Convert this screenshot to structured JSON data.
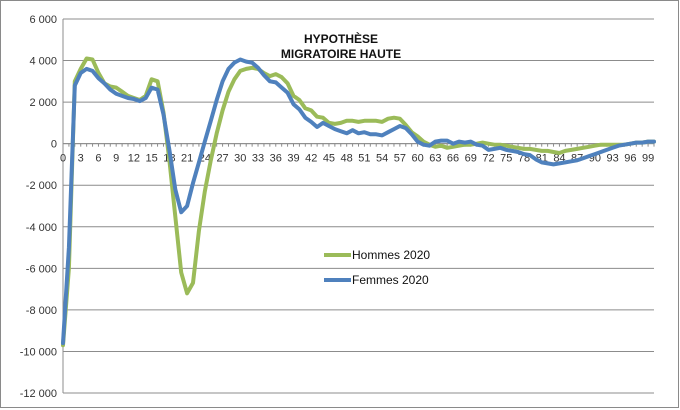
{
  "chart_data": {
    "type": "line",
    "title_lines": [
      "HYPOTHÈSE",
      "MIGRATOIRE HAUTE"
    ],
    "xlabel": "",
    "ylabel": "",
    "xlim": [
      0,
      100
    ],
    "ylim": [
      -12000,
      6000
    ],
    "y_ticks": [
      6000,
      4000,
      2000,
      0,
      -2000,
      -4000,
      -6000,
      -8000,
      -10000,
      -12000
    ],
    "y_tick_labels": [
      "6 000",
      "4 000",
      "2 000",
      "0",
      "-2 000",
      "-4 000",
      "-6 000",
      "-8 000",
      "-10 000",
      "-12 000"
    ],
    "x_ticks": [
      0,
      3,
      6,
      9,
      12,
      15,
      18,
      21,
      24,
      27,
      30,
      33,
      36,
      39,
      42,
      45,
      48,
      51,
      54,
      57,
      60,
      63,
      66,
      69,
      72,
      75,
      78,
      81,
      84,
      87,
      90,
      93,
      96,
      99
    ],
    "grid": "horizontal",
    "legend_position": "center",
    "series": [
      {
        "name": "Hommes 2020",
        "color": "#9bbb59",
        "points": [
          [
            0,
            -9700
          ],
          [
            1,
            -6000
          ],
          [
            2,
            3000
          ],
          [
            3,
            3600
          ],
          [
            4,
            4100
          ],
          [
            5,
            4050
          ],
          [
            6,
            3400
          ],
          [
            7,
            2900
          ],
          [
            8,
            2750
          ],
          [
            9,
            2700
          ],
          [
            10,
            2500
          ],
          [
            11,
            2300
          ],
          [
            12,
            2200
          ],
          [
            13,
            2100
          ],
          [
            14,
            2300
          ],
          [
            15,
            3100
          ],
          [
            16,
            3000
          ],
          [
            17,
            1500
          ],
          [
            18,
            -800
          ],
          [
            19,
            -3500
          ],
          [
            20,
            -6200
          ],
          [
            21,
            -7200
          ],
          [
            22,
            -6700
          ],
          [
            23,
            -4200
          ],
          [
            24,
            -2300
          ],
          [
            25,
            -800
          ],
          [
            26,
            500
          ],
          [
            27,
            1600
          ],
          [
            28,
            2500
          ],
          [
            29,
            3100
          ],
          [
            30,
            3500
          ],
          [
            31,
            3600
          ],
          [
            32,
            3650
          ],
          [
            33,
            3600
          ],
          [
            34,
            3400
          ],
          [
            35,
            3250
          ],
          [
            36,
            3350
          ],
          [
            37,
            3200
          ],
          [
            38,
            2900
          ],
          [
            39,
            2300
          ],
          [
            40,
            2100
          ],
          [
            41,
            1700
          ],
          [
            42,
            1600
          ],
          [
            43,
            1300
          ],
          [
            44,
            1250
          ],
          [
            45,
            1000
          ],
          [
            46,
            950
          ],
          [
            47,
            1000
          ],
          [
            48,
            1100
          ],
          [
            49,
            1100
          ],
          [
            50,
            1050
          ],
          [
            51,
            1100
          ],
          [
            52,
            1100
          ],
          [
            53,
            1100
          ],
          [
            54,
            1050
          ],
          [
            55,
            1200
          ],
          [
            56,
            1250
          ],
          [
            57,
            1200
          ],
          [
            58,
            900
          ],
          [
            59,
            550
          ],
          [
            60,
            350
          ],
          [
            61,
            100
          ],
          [
            62,
            -50
          ],
          [
            63,
            -150
          ],
          [
            64,
            -100
          ],
          [
            65,
            -200
          ],
          [
            66,
            -150
          ],
          [
            67,
            -100
          ],
          [
            68,
            -50
          ],
          [
            69,
            -50
          ],
          [
            70,
            0
          ],
          [
            71,
            50
          ],
          [
            72,
            0
          ],
          [
            73,
            -50
          ],
          [
            74,
            -50
          ],
          [
            75,
            -100
          ],
          [
            76,
            -150
          ],
          [
            77,
            -200
          ],
          [
            78,
            -250
          ],
          [
            79,
            -250
          ],
          [
            80,
            -300
          ],
          [
            81,
            -350
          ],
          [
            82,
            -350
          ],
          [
            83,
            -400
          ],
          [
            84,
            -450
          ],
          [
            85,
            -350
          ],
          [
            86,
            -300
          ],
          [
            87,
            -250
          ],
          [
            88,
            -200
          ],
          [
            89,
            -150
          ],
          [
            90,
            -100
          ],
          [
            91,
            -50
          ],
          [
            92,
            -50
          ],
          [
            93,
            -50
          ],
          [
            94,
            -50
          ],
          [
            95,
            -50
          ],
          [
            96,
            0
          ],
          [
            97,
            50
          ],
          [
            98,
            50
          ],
          [
            99,
            100
          ],
          [
            100,
            100
          ]
        ]
      },
      {
        "name": "Femmes 2020",
        "color": "#4f81bd",
        "points": [
          [
            0,
            -9600
          ],
          [
            1,
            -5000
          ],
          [
            2,
            2800
          ],
          [
            3,
            3400
          ],
          [
            4,
            3600
          ],
          [
            5,
            3500
          ],
          [
            6,
            3150
          ],
          [
            7,
            2900
          ],
          [
            8,
            2600
          ],
          [
            9,
            2400
          ],
          [
            10,
            2300
          ],
          [
            11,
            2200
          ],
          [
            12,
            2150
          ],
          [
            13,
            2050
          ],
          [
            14,
            2200
          ],
          [
            15,
            2700
          ],
          [
            16,
            2600
          ],
          [
            17,
            1400
          ],
          [
            18,
            -300
          ],
          [
            19,
            -2200
          ],
          [
            20,
            -3300
          ],
          [
            21,
            -3000
          ],
          [
            22,
            -1900
          ],
          [
            23,
            -900
          ],
          [
            24,
            100
          ],
          [
            25,
            1100
          ],
          [
            26,
            2100
          ],
          [
            27,
            3000
          ],
          [
            28,
            3600
          ],
          [
            29,
            3900
          ],
          [
            30,
            4050
          ],
          [
            31,
            3950
          ],
          [
            32,
            3900
          ],
          [
            33,
            3650
          ],
          [
            34,
            3300
          ],
          [
            35,
            3000
          ],
          [
            36,
            2950
          ],
          [
            37,
            2700
          ],
          [
            38,
            2450
          ],
          [
            39,
            1900
          ],
          [
            40,
            1650
          ],
          [
            41,
            1250
          ],
          [
            42,
            1050
          ],
          [
            43,
            800
          ],
          [
            44,
            1000
          ],
          [
            45,
            850
          ],
          [
            46,
            700
          ],
          [
            47,
            600
          ],
          [
            48,
            500
          ],
          [
            49,
            650
          ],
          [
            50,
            500
          ],
          [
            51,
            550
          ],
          [
            52,
            450
          ],
          [
            53,
            450
          ],
          [
            54,
            400
          ],
          [
            55,
            550
          ],
          [
            56,
            700
          ],
          [
            57,
            850
          ],
          [
            58,
            750
          ],
          [
            59,
            450
          ],
          [
            60,
            100
          ],
          [
            61,
            -50
          ],
          [
            62,
            -100
          ],
          [
            63,
            100
          ],
          [
            64,
            150
          ],
          [
            65,
            150
          ],
          [
            66,
            0
          ],
          [
            67,
            100
          ],
          [
            68,
            50
          ],
          [
            69,
            100
          ],
          [
            70,
            -50
          ],
          [
            71,
            -100
          ],
          [
            72,
            -300
          ],
          [
            73,
            -250
          ],
          [
            74,
            -200
          ],
          [
            75,
            -300
          ],
          [
            76,
            -350
          ],
          [
            77,
            -400
          ],
          [
            78,
            -500
          ],
          [
            79,
            -550
          ],
          [
            80,
            -750
          ],
          [
            81,
            -900
          ],
          [
            82,
            -950
          ],
          [
            83,
            -1000
          ],
          [
            84,
            -950
          ],
          [
            85,
            -900
          ],
          [
            86,
            -850
          ],
          [
            87,
            -800
          ],
          [
            88,
            -700
          ],
          [
            89,
            -600
          ],
          [
            90,
            -500
          ],
          [
            91,
            -400
          ],
          [
            92,
            -300
          ],
          [
            93,
            -200
          ],
          [
            94,
            -100
          ],
          [
            95,
            -50
          ],
          [
            96,
            0
          ],
          [
            97,
            50
          ],
          [
            98,
            50
          ],
          [
            99,
            100
          ],
          [
            100,
            100
          ]
        ]
      }
    ]
  }
}
